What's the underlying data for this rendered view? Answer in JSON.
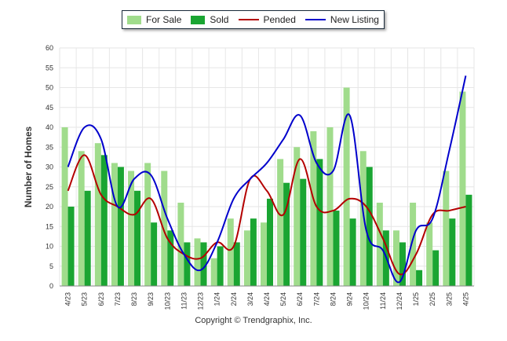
{
  "colors": {
    "for_sale": "#a0dc8c",
    "sold": "#1aa532",
    "pended": "#b40000",
    "new_listing": "#0000cc",
    "grid": "#e6e6e6",
    "axis": "#888888"
  },
  "legend": {
    "for_sale": "For Sale",
    "sold": "Sold",
    "pended": "Pended",
    "new_listing": "New Listing"
  },
  "footer": "Copyright © Trendgraphix, Inc.",
  "chart_data": {
    "type": "bar",
    "ylabel": "Number of Homes",
    "ylim": [
      0,
      60
    ],
    "yticks": [
      0,
      5,
      10,
      15,
      20,
      25,
      30,
      35,
      40,
      45,
      50,
      55,
      60
    ],
    "grid": true,
    "legend_position": "top-center",
    "categories": [
      "4/23",
      "5/23",
      "6/23",
      "7/23",
      "8/23",
      "9/23",
      "10/23",
      "11/23",
      "12/23",
      "1/24",
      "2/24",
      "3/24",
      "4/24",
      "5/24",
      "6/24",
      "7/24",
      "8/24",
      "9/24",
      "10/24",
      "11/24",
      "12/24",
      "1/25",
      "2/25",
      "3/25",
      "4/25"
    ],
    "series": [
      {
        "name": "For Sale",
        "kind": "bar",
        "values": [
          40,
          34,
          36,
          31,
          29,
          31,
          29,
          21,
          12,
          7,
          17,
          14,
          16,
          32,
          35,
          39,
          40,
          50,
          34,
          21,
          14,
          21,
          16,
          29,
          49
        ]
      },
      {
        "name": "Sold",
        "kind": "bar",
        "values": [
          20,
          24,
          33,
          30,
          24,
          16,
          14,
          11,
          11,
          10,
          11,
          17,
          22,
          26,
          27,
          32,
          19,
          17,
          30,
          14,
          11,
          4,
          9,
          17,
          23
        ]
      },
      {
        "name": "Pended",
        "kind": "line",
        "values": [
          24,
          33,
          23,
          20,
          18,
          22,
          12,
          8,
          7,
          11,
          10,
          27,
          24,
          18,
          32,
          20,
          19,
          22,
          20,
          12,
          3,
          8,
          18,
          19,
          20
        ]
      },
      {
        "name": "New Listing",
        "kind": "line",
        "values": [
          30,
          40,
          37,
          20,
          27,
          28,
          17,
          8,
          4,
          11,
          22,
          27,
          31,
          37,
          43,
          31,
          29,
          43,
          14,
          9,
          1,
          14,
          17,
          34,
          53
        ]
      }
    ]
  }
}
